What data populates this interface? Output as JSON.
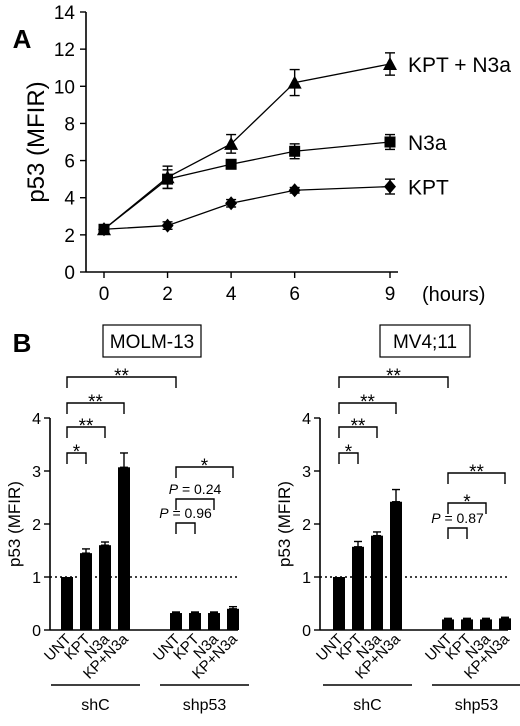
{
  "chart_data": [
    {
      "panel": "A",
      "type": "line",
      "ylabel": "p53 (MFIR)",
      "x_unit": "(hours)",
      "x": [
        0,
        2,
        4,
        6,
        9
      ],
      "xlim": [
        0,
        9
      ],
      "ylim": [
        0,
        14
      ],
      "yticks": [
        0,
        2,
        4,
        6,
        8,
        10,
        12,
        14
      ],
      "series": [
        {
          "name": "KPT + N3a",
          "marker": "triangle",
          "values": [
            2.3,
            5.1,
            6.9,
            10.2,
            11.2
          ],
          "errors": [
            0.2,
            0.6,
            0.5,
            0.7,
            0.6
          ]
        },
        {
          "name": "N3a",
          "marker": "square",
          "values": [
            2.3,
            5.0,
            5.8,
            6.5,
            7.0
          ],
          "errors": [
            0.2,
            0.5,
            0.2,
            0.4,
            0.4
          ]
        },
        {
          "name": "KPT",
          "marker": "diamond",
          "values": [
            2.3,
            2.5,
            3.7,
            4.4,
            4.6
          ],
          "errors": [
            0.2,
            0.2,
            0.2,
            0.15,
            0.4
          ]
        }
      ]
    },
    {
      "panel": "B",
      "type": "bar",
      "title": "MOLM-13",
      "ylabel": "p53 (MFIR)",
      "ylim": [
        0,
        4
      ],
      "yticks": [
        0,
        1,
        2,
        3,
        4
      ],
      "reference_line": 1,
      "categories": [
        "UNT",
        "KPT",
        "N3a",
        "KP+N3a",
        "UNT",
        "KPT",
        "N3a",
        "KP+N3a"
      ],
      "groups": [
        "shC",
        "shp53"
      ],
      "values": [
        1.0,
        1.45,
        1.6,
        3.07,
        0.32,
        0.32,
        0.32,
        0.4
      ],
      "errors": [
        0.0,
        0.08,
        0.06,
        0.27,
        0.02,
        0.02,
        0.02,
        0.04
      ],
      "annotations": [
        {
          "from": 0,
          "to": 1,
          "label": "*"
        },
        {
          "from": 0,
          "to": 2,
          "label": "**"
        },
        {
          "from": 0,
          "to": 3,
          "label": "**"
        },
        {
          "from": 0,
          "to": 4,
          "label": "**"
        },
        {
          "from": 4,
          "to": 5,
          "label": "P = 0.96"
        },
        {
          "from": 4,
          "to": 6,
          "label": "P = 0.24"
        },
        {
          "from": 4,
          "to": 7,
          "label": "*"
        }
      ]
    },
    {
      "panel": "B",
      "type": "bar",
      "title": "MV4;11",
      "ylabel": "p53 (MFIR)",
      "ylim": [
        0,
        4
      ],
      "yticks": [
        0,
        1,
        2,
        3,
        4
      ],
      "reference_line": 1,
      "categories": [
        "UNT",
        "KPT",
        "N3a",
        "KP+N3a",
        "UNT",
        "KPT",
        "N3a",
        "KP+N3a"
      ],
      "groups": [
        "shC",
        "shp53"
      ],
      "values": [
        1.0,
        1.57,
        1.78,
        2.42,
        0.2,
        0.2,
        0.2,
        0.22
      ],
      "errors": [
        0.0,
        0.1,
        0.07,
        0.23,
        0.02,
        0.02,
        0.02,
        0.02
      ],
      "annotations": [
        {
          "from": 0,
          "to": 1,
          "label": "*"
        },
        {
          "from": 0,
          "to": 2,
          "label": "**"
        },
        {
          "from": 0,
          "to": 3,
          "label": "**"
        },
        {
          "from": 0,
          "to": 4,
          "label": "**"
        },
        {
          "from": 4,
          "to": 5,
          "label": "P = 0.87"
        },
        {
          "from": 4,
          "to": 6,
          "label": "*"
        },
        {
          "from": 4,
          "to": 7,
          "label": "**"
        }
      ]
    }
  ]
}
